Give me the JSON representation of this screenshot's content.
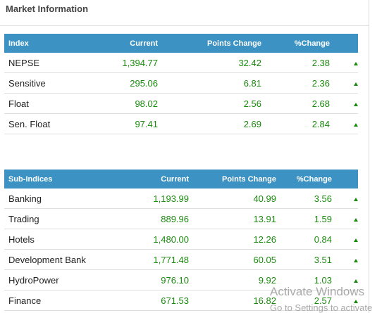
{
  "panel": {
    "title": "Market Information"
  },
  "index_table": {
    "headers": [
      "Index",
      "Current",
      "Points Change",
      "%Change"
    ],
    "rows": [
      {
        "name": "NEPSE",
        "current": "1,394.77",
        "points": "32.42",
        "pct": "2.38",
        "trend": "up"
      },
      {
        "name": "Sensitive",
        "current": "295.06",
        "points": "6.81",
        "pct": "2.36",
        "trend": "up"
      },
      {
        "name": "Float",
        "current": "98.02",
        "points": "2.56",
        "pct": "2.68",
        "trend": "up"
      },
      {
        "name": "Sen. Float",
        "current": "97.41",
        "points": "2.69",
        "pct": "2.84",
        "trend": "up"
      }
    ]
  },
  "subindex_table": {
    "headers": [
      "Sub-Indices",
      "Current",
      "Points Change",
      "%Change"
    ],
    "rows": [
      {
        "name": "Banking",
        "current": "1,193.99",
        "points": "40.99",
        "pct": "3.56",
        "trend": "up"
      },
      {
        "name": "Trading",
        "current": "889.96",
        "points": "13.91",
        "pct": "1.59",
        "trend": "up"
      },
      {
        "name": "Hotels",
        "current": "1,480.00",
        "points": "12.26",
        "pct": "0.84",
        "trend": "up"
      },
      {
        "name": "Development Bank",
        "current": "1,771.48",
        "points": "60.05",
        "pct": "3.51",
        "trend": "up"
      },
      {
        "name": "HydroPower",
        "current": "976.10",
        "points": "9.92",
        "pct": "1.03",
        "trend": "up"
      },
      {
        "name": "Finance",
        "current": "671.53",
        "points": "16.82",
        "pct": "2.57",
        "trend": "up"
      }
    ]
  },
  "watermark": {
    "line1": "Activate Windows",
    "line2": "Go to Settings to activate"
  },
  "colors": {
    "header_bg": "#3c92c3",
    "positive": "#1a8a0e",
    "text": "#222222"
  },
  "icons": {
    "trend_up": "triangle-up-icon"
  }
}
